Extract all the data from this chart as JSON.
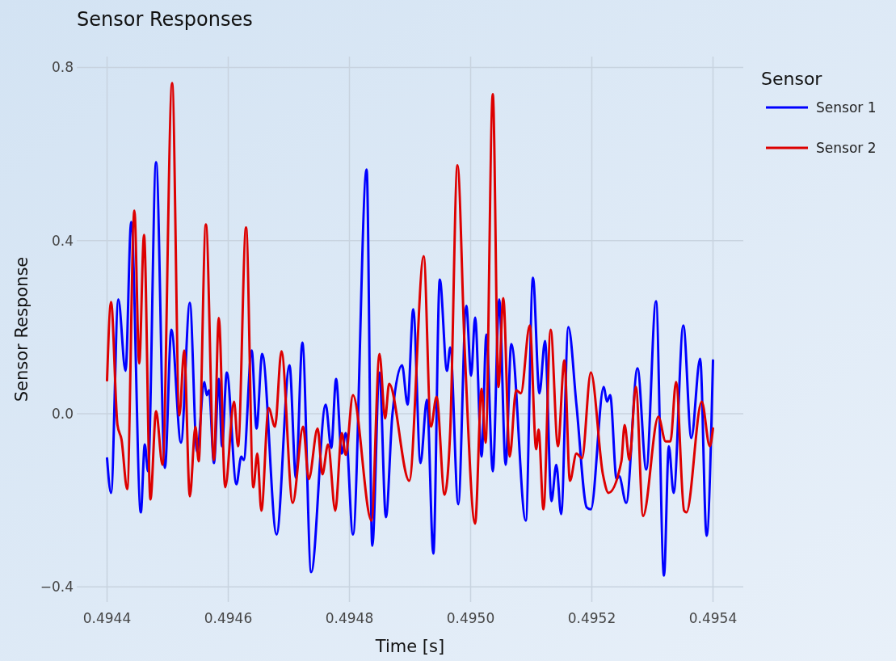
{
  "chart_data": {
    "type": "line",
    "title": "Sensor Responses",
    "xlabel": "Time [s]",
    "ylabel": "Sensor Response",
    "legend_title": "Sensor",
    "legend": "top right",
    "grid": true,
    "xlim": [
      0.49435,
      0.49545
    ],
    "ylim": [
      -0.435,
      0.825
    ],
    "xticks": [
      0.4944,
      0.4946,
      0.4948,
      {
        "value": 0.495,
        "label": "0.4950"
      },
      0.4952,
      0.4954
    ],
    "yticks": [
      {
        "value": -0.4,
        "label": "−0.4"
      },
      {
        "value": 0,
        "label": "0.0"
      },
      0.4,
      0.8
    ],
    "series": [
      {
        "name": "Sensor 1",
        "color": "#0000ff",
        "x": [
          0.4944,
          0.4944066,
          0.4944186,
          0.4944305,
          0.4944398,
          0.4944557,
          0.4944623,
          0.4944676,
          0.4944809,
          0.4944955,
          0.4945061,
          0.494522,
          0.4945366,
          0.4945485,
          0.4945605,
          0.4945645,
          0.4945684,
          0.4945764,
          0.4945844,
          0.4945897,
          0.4945976,
          0.4946135,
          0.4946215,
          0.4946255,
          0.4946387,
          0.4946467,
          0.494656,
          0.4946798,
          0.4947011,
          0.4947117,
          0.4947223,
          0.4947369,
          0.4947608,
          0.49477,
          0.494778,
          0.4947873,
          0.4947939,
          0.4948058,
          0.4948284,
          0.4948377,
          0.4948496,
          0.4948602,
          0.4948708,
          0.4948868,
          0.494896,
          0.4949053,
          0.4949173,
          0.4949279,
          0.4949385,
          0.4949491,
          0.494961,
          0.4949663,
          0.4949796,
          0.4949929,
          0.4950008,
          0.4950074,
          0.4950181,
          0.495026,
          0.4950366,
          0.4950472,
          0.4950578,
          0.4950671,
          0.495091,
          0.4951029,
          0.4951135,
          0.4951228,
          0.4951334,
          0.4951414,
          0.4951494,
          0.4951613,
          0.4951746,
          0.4951918,
          0.4951984,
          0.4952197,
          0.495225,
          0.4952303,
          0.4952409,
          0.4952449,
          0.4952568,
          0.4952754,
          0.4952899,
          0.4953059,
          0.4953191,
          0.4953271,
          0.495335,
          0.495351,
          0.4953642,
          0.4953788,
          0.4953894,
          0.4954
        ],
        "values": [
          -0.103,
          -0.183,
          0.264,
          0.099,
          0.443,
          -0.228,
          -0.071,
          -0.133,
          0.581,
          -0.125,
          0.194,
          -0.067,
          0.256,
          -0.088,
          0.073,
          0.043,
          0.054,
          -0.114,
          0.08,
          -0.075,
          0.095,
          -0.163,
          -0.099,
          -0.107,
          0.146,
          -0.034,
          0.138,
          -0.279,
          0.112,
          -0.148,
          0.164,
          -0.366,
          0.021,
          -0.079,
          0.08,
          -0.092,
          -0.045,
          -0.279,
          0.564,
          -0.305,
          0.095,
          -0.239,
          -0.004,
          0.112,
          0.021,
          0.241,
          -0.114,
          0.032,
          -0.323,
          0.31,
          0.099,
          0.153,
          -0.209,
          0.249,
          0.088,
          0.222,
          -0.099,
          0.183,
          -0.133,
          0.264,
          -0.118,
          0.161,
          -0.247,
          0.314,
          0.047,
          0.168,
          -0.202,
          -0.118,
          -0.232,
          0.2,
          0.021,
          -0.217,
          -0.221,
          0.062,
          0.028,
          0.043,
          -0.151,
          -0.144,
          -0.206,
          0.105,
          -0.129,
          0.26,
          -0.374,
          -0.075,
          -0.183,
          0.204,
          -0.056,
          0.127,
          -0.282,
          0.123
        ]
      },
      {
        "name": "Sensor 2",
        "color": "#dd0000",
        "x": [
          0.4944,
          0.4944066,
          0.4944172,
          0.4944239,
          0.4944332,
          0.4944451,
          0.4944531,
          0.494461,
          0.4944716,
          0.4944809,
          0.4944915,
          0.4945074,
          0.4945194,
          0.4945273,
          0.4945366,
          0.4945459,
          0.4945512,
          0.4945631,
          0.4945764,
          0.4945844,
          0.494595,
          0.4946096,
          0.4946162,
          0.4946294,
          0.4946414,
          0.494648,
          0.4946546,
          0.4946666,
          0.4946772,
          0.4946878,
          0.4947064,
          0.4947236,
          0.4947329,
          0.4947475,
          0.4947554,
          0.4947647,
          0.4947767,
          0.4947873,
          0.4947939,
          0.4948058,
          0.4948364,
          0.4948496,
          0.4948589,
          0.4948655,
          0.4948987,
          0.4949226,
          0.4949345,
          0.4949438,
          0.494957,
          0.4949663,
          0.4949783,
          0.4949902,
          0.4950074,
          0.4950181,
          0.4950247,
          0.4950366,
          0.4950459,
          0.4950539,
          0.4950645,
          0.4950751,
          0.495083,
          0.4950976,
          0.4951082,
          0.4951122,
          0.4951202,
          0.4951321,
          0.4951441,
          0.4951547,
          0.4951639,
          0.4951746,
          0.4951838,
          0.4951984,
          0.4952183,
          0.4952276,
          0.4952488,
          0.4952541,
          0.4952621,
          0.4952727,
          0.4952846,
          0.4953098,
          0.4953218,
          0.4953297,
          0.495339,
          0.4953523,
          0.4953562,
          0.4953814,
          0.4953947,
          0.4954
        ],
        "values": [
          0.077,
          0.258,
          -0.026,
          -0.06,
          -0.174,
          0.469,
          0.116,
          0.413,
          -0.198,
          0.006,
          -0.118,
          0.764,
          -0.004,
          0.146,
          -0.191,
          -0.03,
          -0.11,
          0.437,
          -0.107,
          0.221,
          -0.17,
          0.028,
          -0.075,
          0.43,
          -0.17,
          -0.092,
          -0.224,
          0.013,
          -0.03,
          0.144,
          -0.206,
          -0.03,
          -0.151,
          -0.034,
          -0.14,
          -0.071,
          -0.224,
          -0.045,
          -0.095,
          0.043,
          -0.247,
          0.138,
          -0.011,
          0.069,
          -0.155,
          0.364,
          -0.03,
          0.039,
          -0.187,
          -0.041,
          0.574,
          0.15,
          -0.254,
          0.058,
          -0.067,
          0.738,
          0.062,
          0.267,
          -0.099,
          0.054,
          0.047,
          0.204,
          -0.082,
          -0.037,
          -0.221,
          0.194,
          -0.075,
          0.123,
          -0.155,
          -0.092,
          -0.103,
          0.095,
          -0.14,
          -0.183,
          -0.11,
          -0.026,
          -0.107,
          0.062,
          -0.236,
          -0.007,
          -0.064,
          -0.064,
          0.073,
          -0.224,
          -0.228,
          0.028,
          -0.075,
          -0.034
        ]
      }
    ]
  }
}
